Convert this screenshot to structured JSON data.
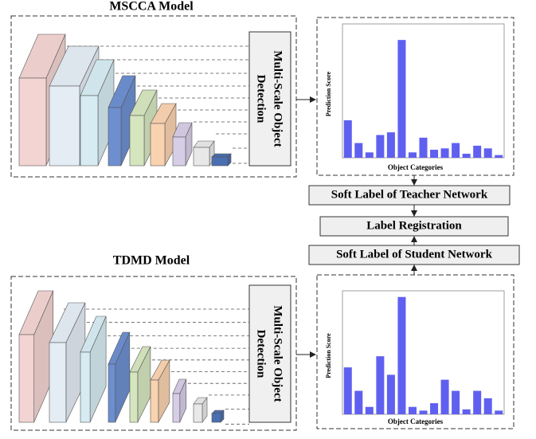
{
  "top_model": {
    "title": "MSCCA Model",
    "detector": [
      "Multi-Scale Object",
      "Detection"
    ]
  },
  "bottom_model": {
    "title": "TDMD Model",
    "detector": [
      "Multi-Scale Object",
      "Detection"
    ]
  },
  "steps": [
    "Soft Label of Teacher Network",
    "Label Registration",
    "Soft Label of Student Network"
  ],
  "chart_data": [
    {
      "type": "bar",
      "y_label": "Prediction Score",
      "x_label": "Object Categories",
      "color": "#6060f0",
      "categories": [
        null,
        null,
        null,
        null,
        null,
        null,
        null,
        null,
        null,
        null,
        null,
        null,
        null,
        null,
        null
      ],
      "values": [
        28,
        11,
        4,
        17,
        19,
        88,
        4,
        15,
        6,
        7,
        11,
        3,
        9,
        7,
        2
      ],
      "ylim": [
        0,
        100
      ]
    },
    {
      "type": "bar",
      "y_label": "Prediction Score",
      "x_label": "Object Categories",
      "color": "#6060f0",
      "categories": [
        null,
        null,
        null,
        null,
        null,
        null,
        null,
        null,
        null,
        null,
        null,
        null,
        null,
        null,
        null
      ],
      "values": [
        38,
        19,
        6,
        47,
        32,
        95,
        6,
        3,
        9,
        28,
        19,
        4,
        19,
        13,
        3
      ],
      "ylim": [
        0,
        100
      ]
    }
  ]
}
